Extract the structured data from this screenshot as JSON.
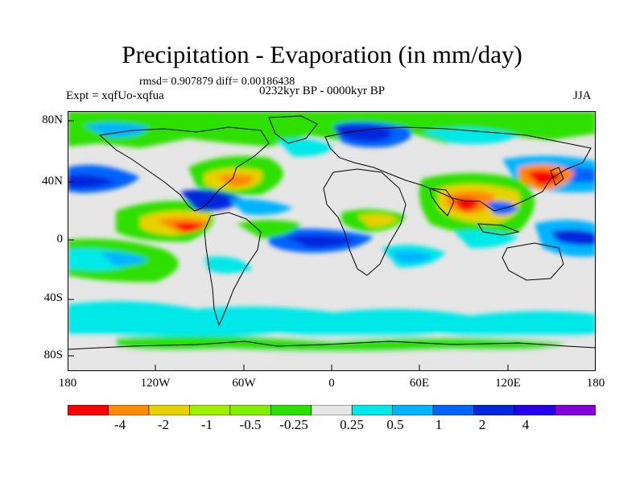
{
  "title": "Precipitation - Evaporation (in mm/day)",
  "stats": "rmsd= 0.907879 diff= 0.00186438",
  "experiment": "Expt = xqfUo-xqfua",
  "period": "0232kyr BP - 0000kyr BP",
  "season": "JJA",
  "map": {
    "lat_ticks": [
      "80N",
      "40N",
      "0",
      "40S",
      "80S"
    ],
    "lon_ticks": [
      "180",
      "120W",
      "60W",
      "0",
      "60E",
      "120E",
      "180"
    ],
    "ocean_color": "#e6e6e6",
    "coastline_color": "#000000"
  },
  "colorbar": {
    "colors": [
      "#ff0000",
      "#ff8c00",
      "#e6d200",
      "#a0ee00",
      "#7ef000",
      "#2ee000",
      "#e6e6e6",
      "#00e8e8",
      "#00b4ff",
      "#0064ff",
      "#0028dc",
      "#2800f0",
      "#8200dc"
    ],
    "labels": [
      "-4",
      "-2",
      "-1",
      "-0.5",
      "-0.25",
      "0.25",
      "0.5",
      "1",
      "2",
      "4"
    ]
  }
}
